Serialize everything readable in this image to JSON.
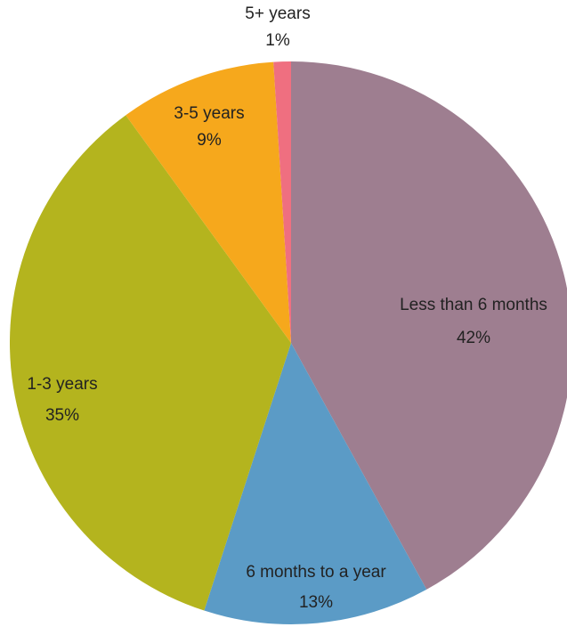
{
  "chart_data": {
    "type": "pie",
    "categories": [
      "Less than 6 months",
      "6 months to a year",
      "1-3 years",
      "3-5 years",
      "5+ years"
    ],
    "values": [
      42,
      13,
      35,
      9,
      1
    ],
    "value_labels": [
      "42%",
      "13%",
      "35%",
      "9%",
      "1%"
    ],
    "colors": [
      "#9e7e90",
      "#5b9bc6",
      "#b4b41e",
      "#f6a81c",
      "#ef6f80"
    ]
  }
}
